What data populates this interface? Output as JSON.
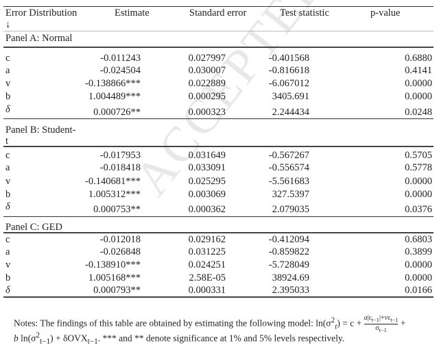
{
  "header": {
    "col0": "Error Distribution",
    "arrow": "↓",
    "col1": "Estimate",
    "col2": "Standard error",
    "col3": "Test statistic",
    "col4": "p-value"
  },
  "watermark": "ACCEPTED MANUSCRIPT",
  "panels": [
    {
      "title": "Panel A: Normal",
      "rows": [
        [
          "c",
          "-0.011243",
          "0.027997",
          "-0.401568",
          "0.6880"
        ],
        [
          "a",
          "-0.024504",
          "0.030007",
          "-0.816618",
          "0.4141"
        ],
        [
          "v",
          "-0.138866***",
          "0.022889",
          "-6.067012",
          "0.0000"
        ],
        [
          "b",
          "1.004489***",
          "0.000295",
          "3405.691",
          "0.0000"
        ],
        [
          "δ",
          "0.000726**",
          "0.000323",
          "2.244434",
          "0.0248"
        ]
      ]
    },
    {
      "title": "Panel B: Student-",
      "title2": "t",
      "rows": [
        [
          "c",
          "-0.017953",
          "0.031649",
          "-0.567267",
          "0.5705"
        ],
        [
          "a",
          "-0.018418",
          "0.033091",
          "-0.556574",
          "0.5778"
        ],
        [
          "v",
          "-0.140681***",
          "0.025295",
          "-5.561683",
          "0.0000"
        ],
        [
          "b",
          "1.005312***",
          "0.003069",
          "327.5397",
          "0.0000"
        ],
        [
          "δ",
          "0.000753**",
          "0.000362",
          "2.079035",
          "0.0376"
        ]
      ]
    },
    {
      "title": "Panel C: GED",
      "rows": [
        [
          "c",
          "-0.012018",
          "0.029162",
          "-0.412094",
          "0.6803"
        ],
        [
          "a",
          "-0.026848",
          "0.031225",
          "-0.859822",
          "0.3899"
        ],
        [
          "v",
          "-0.138910***",
          "0.024251",
          "-5.728049",
          "0.0000"
        ],
        [
          "b",
          "1.005168***",
          "2.58E-05",
          "38924.69",
          "0.0000"
        ],
        [
          "δ",
          "0.000793**",
          "0.000331",
          "2.395033",
          "0.0166"
        ]
      ]
    }
  ],
  "notes": {
    "line1_prefix": "Notes: The findings of this table are obtained by estimating the following model: ln(σ",
    "line1_mid": ") = c + ",
    "frac_num": "a|ε_{t−1}|+vε_{t−1}",
    "frac_den": "σ_{t−1}",
    "line2": "b ln(σ²_{t−1}) + δOVX_{t−1}. *** and ** denote significance at 1% and 5% levels respectively."
  }
}
